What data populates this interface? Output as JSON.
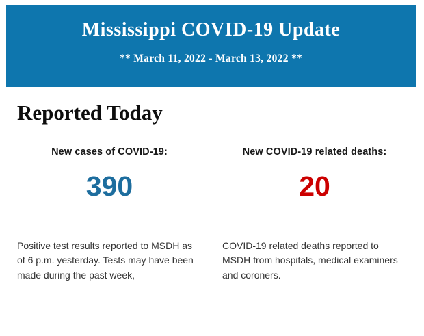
{
  "header": {
    "title": "Mississippi COVID-19 Update",
    "subtitle": "** March 11, 2022 - March 13, 2022 **",
    "background_color": "#0e76ae",
    "text_color": "#ffffff"
  },
  "section": {
    "heading": "Reported Today"
  },
  "stats": [
    {
      "label": "New cases of COVID-19:",
      "value": "390",
      "value_color": "#1d6d9e",
      "description": "Positive test results reported to MSDH as of 6 p.m. yesterday. Tests may have been made during the past week,"
    },
    {
      "label": "New COVID-19 related deaths:",
      "value": "20",
      "value_color": "#cc0000",
      "description": "COVID-19 related deaths reported to MSDH from hospitals, medical examiners and coroners."
    }
  ]
}
